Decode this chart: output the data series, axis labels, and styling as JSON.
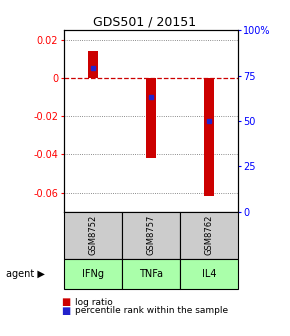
{
  "title": "GDS501 / 20151",
  "samples": [
    "GSM8752",
    "GSM8757",
    "GSM8762"
  ],
  "agents": [
    "IFNg",
    "TNFa",
    "IL4"
  ],
  "log_ratios": [
    0.014,
    -0.042,
    -0.062
  ],
  "percentile_ranks_raw": [
    0.79,
    0.63,
    0.5
  ],
  "ylim_left": [
    -0.07,
    0.025
  ],
  "bar_color": "#cc0000",
  "percentile_color": "#2222cc",
  "agent_colors": [
    "#bbffbb",
    "#aaeebb",
    "#77dd77"
  ],
  "sample_bg": "#cccccc",
  "zero_line_color": "#cc0000",
  "grid_color": "#666666",
  "yticks_left": [
    0.02,
    0.0,
    -0.02,
    -0.04,
    -0.06
  ],
  "yticks_right": [
    1.0,
    0.75,
    0.5,
    0.25,
    0.0
  ],
  "ytick_labels_right": [
    "100%",
    "75",
    "50",
    "25",
    "0"
  ],
  "title_fontsize": 9
}
